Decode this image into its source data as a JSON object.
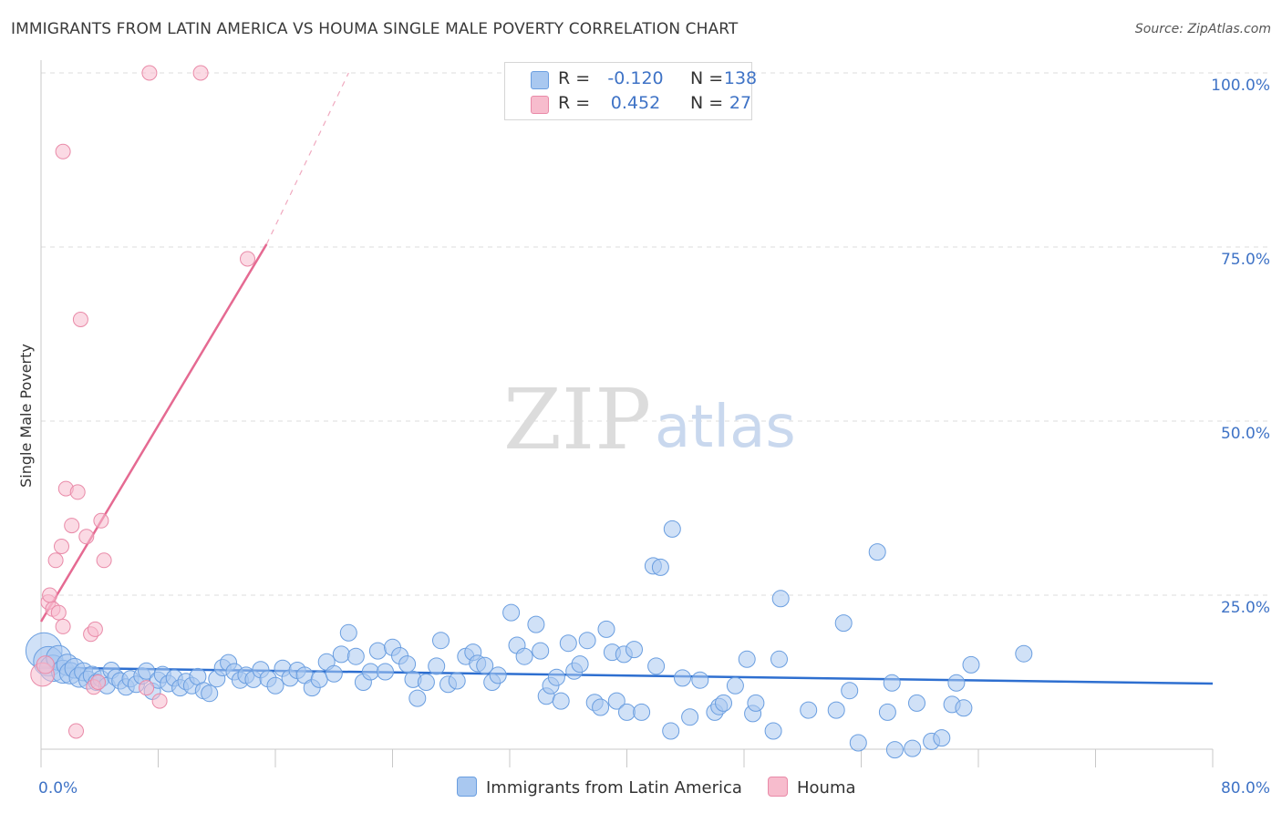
{
  "title": "IMMIGRANTS FROM LATIN AMERICA VS HOUMA SINGLE MALE POVERTY CORRELATION CHART",
  "source": "Source: ZipAtlas.com",
  "watermark": {
    "zip": "ZIP",
    "atlas": "atlas"
  },
  "colors": {
    "blue_fill": "#a9c8f0",
    "blue_stroke": "#6a9ee0",
    "blue_line": "#2e6fd0",
    "pink_fill": "#f7bccd",
    "pink_stroke": "#e98aa8",
    "pink_line": "#e56a92",
    "tick_text": "#3f73c6",
    "grid": "#dddddd"
  },
  "legend": {
    "rows": [
      {
        "series": "Immigrants from Latin America",
        "r_label": "R =",
        "r_value": "-0.120",
        "n_label": "N =",
        "n_value": "138"
      },
      {
        "series": "Houma",
        "r_label": "R =",
        "r_value": "0.452",
        "n_label": "N =",
        "n_value": "27"
      }
    ]
  },
  "chart_data": {
    "type": "scatter",
    "title": "IMMIGRANTS FROM LATIN AMERICA VS HOUMA SINGLE MALE POVERTY CORRELATION CHART",
    "xlabel": "",
    "ylabel": "Single Male Poverty",
    "xlim": [
      0,
      80
    ],
    "ylim": [
      0,
      105
    ],
    "x_tick_labels": [
      {
        "value": 0,
        "label": "0.0%"
      },
      {
        "value": 80,
        "label": "80.0%"
      }
    ],
    "y_tick_labels": [
      {
        "value": 25,
        "label": "25.0%"
      },
      {
        "value": 50,
        "label": "50.0%"
      },
      {
        "value": 75,
        "label": "75.0%"
      },
      {
        "value": 100,
        "label": "100.0%"
      }
    ],
    "grid": true,
    "series": [
      {
        "name": "Immigrants from Latin America",
        "color": "#a9c8f0",
        "trendline": {
          "x": [
            0,
            80
          ],
          "y": [
            14.6,
            12.3
          ],
          "style": "solid"
        },
        "points": [
          {
            "x": 0.2,
            "y": 17.0,
            "s": 2.2
          },
          {
            "x": 0.5,
            "y": 15.5,
            "s": 1.8
          },
          {
            "x": 0.8,
            "y": 14.5,
            "s": 1.6
          },
          {
            "x": 1.2,
            "y": 16.0,
            "s": 1.5
          },
          {
            "x": 1.5,
            "y": 14.0,
            "s": 1.4
          },
          {
            "x": 1.8,
            "y": 15.0,
            "s": 1.3
          },
          {
            "x": 2.0,
            "y": 13.8,
            "s": 1.3
          },
          {
            "x": 2.3,
            "y": 14.5,
            "s": 1.2
          },
          {
            "x": 2.6,
            "y": 13.2,
            "s": 1.2
          },
          {
            "x": 2.9,
            "y": 14.0,
            "s": 1.1
          },
          {
            "x": 3.2,
            "y": 12.8,
            "s": 1.1
          },
          {
            "x": 3.5,
            "y": 13.5,
            "s": 1.1
          },
          {
            "x": 3.8,
            "y": 12.5,
            "s": 1.0
          },
          {
            "x": 4.1,
            "y": 13.0,
            "s": 1.0
          },
          {
            "x": 4.5,
            "y": 12.0,
            "s": 1.0
          },
          {
            "x": 4.8,
            "y": 14.2,
            "s": 1.0
          },
          {
            "x": 5.1,
            "y": 13.2,
            "s": 1.0
          },
          {
            "x": 5.4,
            "y": 12.7,
            "s": 1.0
          },
          {
            "x": 5.8,
            "y": 11.8,
            "s": 1.0
          },
          {
            "x": 6.1,
            "y": 13.0,
            "s": 1.0
          },
          {
            "x": 6.5,
            "y": 12.2,
            "s": 1.0
          },
          {
            "x": 6.9,
            "y": 13.4,
            "s": 1.0
          },
          {
            "x": 7.2,
            "y": 14.1,
            "s": 1.0
          },
          {
            "x": 7.6,
            "y": 11.2,
            "s": 1.0
          },
          {
            "x": 8.0,
            "y": 12.8,
            "s": 1.0
          },
          {
            "x": 8.3,
            "y": 13.6,
            "s": 1.0
          },
          {
            "x": 8.7,
            "y": 12.3,
            "s": 1.0
          },
          {
            "x": 9.1,
            "y": 13.1,
            "s": 1.0
          },
          {
            "x": 9.5,
            "y": 11.7,
            "s": 1.0
          },
          {
            "x": 9.9,
            "y": 12.6,
            "s": 1.0
          },
          {
            "x": 10.3,
            "y": 12.0,
            "s": 1.0
          },
          {
            "x": 10.7,
            "y": 13.3,
            "s": 1.0
          },
          {
            "x": 11.1,
            "y": 11.3,
            "s": 1.0
          },
          {
            "x": 11.5,
            "y": 10.9,
            "s": 1.0
          },
          {
            "x": 12.0,
            "y": 13.0,
            "s": 1.0
          },
          {
            "x": 12.4,
            "y": 14.6,
            "s": 1.0
          },
          {
            "x": 12.8,
            "y": 15.3,
            "s": 1.0
          },
          {
            "x": 13.2,
            "y": 14.0,
            "s": 1.0
          },
          {
            "x": 13.6,
            "y": 12.8,
            "s": 1.0
          },
          {
            "x": 14.0,
            "y": 13.5,
            "s": 1.0
          },
          {
            "x": 14.5,
            "y": 12.9,
            "s": 1.0
          },
          {
            "x": 15.0,
            "y": 14.3,
            "s": 1.0
          },
          {
            "x": 15.5,
            "y": 13.0,
            "s": 1.0
          },
          {
            "x": 16.0,
            "y": 12.0,
            "s": 1.0
          },
          {
            "x": 16.5,
            "y": 14.5,
            "s": 1.0
          },
          {
            "x": 17.0,
            "y": 13.1,
            "s": 1.0
          },
          {
            "x": 17.5,
            "y": 14.2,
            "s": 1.0
          },
          {
            "x": 18.0,
            "y": 13.5,
            "s": 1.0
          },
          {
            "x": 18.5,
            "y": 11.7,
            "s": 1.0
          },
          {
            "x": 19.0,
            "y": 12.9,
            "s": 1.0
          },
          {
            "x": 19.5,
            "y": 15.4,
            "s": 1.0
          },
          {
            "x": 20.0,
            "y": 13.7,
            "s": 1.0
          },
          {
            "x": 20.5,
            "y": 16.5,
            "s": 1.0
          },
          {
            "x": 21.0,
            "y": 19.6,
            "s": 1.0
          },
          {
            "x": 21.5,
            "y": 16.2,
            "s": 1.0
          },
          {
            "x": 22.0,
            "y": 12.5,
            "s": 1.0
          },
          {
            "x": 22.5,
            "y": 14.0,
            "s": 1.0
          },
          {
            "x": 23.0,
            "y": 17.0,
            "s": 1.0
          },
          {
            "x": 23.5,
            "y": 14.0,
            "s": 1.0
          },
          {
            "x": 24.0,
            "y": 17.5,
            "s": 1.0
          },
          {
            "x": 24.5,
            "y": 16.3,
            "s": 1.0
          },
          {
            "x": 25.0,
            "y": 15.1,
            "s": 1.0
          },
          {
            "x": 25.4,
            "y": 12.9,
            "s": 1.0
          },
          {
            "x": 25.7,
            "y": 10.2,
            "s": 1.0
          },
          {
            "x": 26.3,
            "y": 12.5,
            "s": 1.0
          },
          {
            "x": 27.0,
            "y": 14.8,
            "s": 1.0
          },
          {
            "x": 27.3,
            "y": 18.5,
            "s": 1.0
          },
          {
            "x": 27.8,
            "y": 12.2,
            "s": 1.0
          },
          {
            "x": 28.4,
            "y": 12.7,
            "s": 1.0
          },
          {
            "x": 29.0,
            "y": 16.2,
            "s": 1.0
          },
          {
            "x": 29.5,
            "y": 16.8,
            "s": 1.0
          },
          {
            "x": 29.8,
            "y": 15.2,
            "s": 1.0
          },
          {
            "x": 30.3,
            "y": 14.9,
            "s": 1.0
          },
          {
            "x": 30.8,
            "y": 12.5,
            "s": 1.0
          },
          {
            "x": 31.2,
            "y": 13.5,
            "s": 1.0
          },
          {
            "x": 32.1,
            "y": 22.5,
            "s": 1.0
          },
          {
            "x": 32.5,
            "y": 17.8,
            "s": 1.0
          },
          {
            "x": 33.0,
            "y": 16.2,
            "s": 1.0
          },
          {
            "x": 33.8,
            "y": 20.8,
            "s": 1.0
          },
          {
            "x": 34.1,
            "y": 17.0,
            "s": 1.0
          },
          {
            "x": 34.5,
            "y": 10.5,
            "s": 1.0
          },
          {
            "x": 34.8,
            "y": 12.0,
            "s": 1.0
          },
          {
            "x": 35.2,
            "y": 13.2,
            "s": 1.0
          },
          {
            "x": 35.5,
            "y": 9.8,
            "s": 1.0
          },
          {
            "x": 36.0,
            "y": 18.1,
            "s": 1.0
          },
          {
            "x": 36.4,
            "y": 14.1,
            "s": 1.0
          },
          {
            "x": 36.8,
            "y": 15.1,
            "s": 1.0
          },
          {
            "x": 37.3,
            "y": 18.5,
            "s": 1.0
          },
          {
            "x": 37.8,
            "y": 9.6,
            "s": 1.0
          },
          {
            "x": 38.2,
            "y": 8.9,
            "s": 1.0
          },
          {
            "x": 38.6,
            "y": 20.1,
            "s": 1.0
          },
          {
            "x": 39.0,
            "y": 16.8,
            "s": 1.0
          },
          {
            "x": 39.3,
            "y": 9.8,
            "s": 1.0
          },
          {
            "x": 39.8,
            "y": 16.5,
            "s": 1.0
          },
          {
            "x": 40.5,
            "y": 17.2,
            "s": 1.0
          },
          {
            "x": 40.0,
            "y": 8.2,
            "s": 1.0
          },
          {
            "x": 41.0,
            "y": 8.2,
            "s": 1.0
          },
          {
            "x": 41.8,
            "y": 29.2,
            "s": 1.0
          },
          {
            "x": 42.0,
            "y": 14.8,
            "s": 1.0
          },
          {
            "x": 42.3,
            "y": 29.0,
            "s": 1.0
          },
          {
            "x": 43.1,
            "y": 34.5,
            "s": 1.0
          },
          {
            "x": 43.0,
            "y": 5.5,
            "s": 1.0
          },
          {
            "x": 43.8,
            "y": 13.1,
            "s": 1.0
          },
          {
            "x": 44.3,
            "y": 7.5,
            "s": 1.0
          },
          {
            "x": 45.0,
            "y": 12.8,
            "s": 1.0
          },
          {
            "x": 46.0,
            "y": 8.2,
            "s": 1.0
          },
          {
            "x": 46.3,
            "y": 9.0,
            "s": 1.0
          },
          {
            "x": 46.6,
            "y": 9.5,
            "s": 1.0
          },
          {
            "x": 47.4,
            "y": 12.0,
            "s": 1.0
          },
          {
            "x": 48.2,
            "y": 15.8,
            "s": 1.0
          },
          {
            "x": 48.6,
            "y": 8.0,
            "s": 1.0
          },
          {
            "x": 48.8,
            "y": 9.5,
            "s": 1.0
          },
          {
            "x": 50.0,
            "y": 5.5,
            "s": 1.0
          },
          {
            "x": 50.5,
            "y": 24.5,
            "s": 1.0
          },
          {
            "x": 50.4,
            "y": 15.8,
            "s": 1.0
          },
          {
            "x": 52.4,
            "y": 8.5,
            "s": 1.0
          },
          {
            "x": 54.3,
            "y": 8.5,
            "s": 1.0
          },
          {
            "x": 54.8,
            "y": 21.0,
            "s": 1.0
          },
          {
            "x": 55.2,
            "y": 11.3,
            "s": 1.0
          },
          {
            "x": 55.8,
            "y": 3.8,
            "s": 1.0
          },
          {
            "x": 57.1,
            "y": 31.2,
            "s": 1.0
          },
          {
            "x": 57.8,
            "y": 8.2,
            "s": 1.0
          },
          {
            "x": 58.1,
            "y": 12.4,
            "s": 1.0
          },
          {
            "x": 58.3,
            "y": 2.8,
            "s": 1.0
          },
          {
            "x": 59.5,
            "y": 3.0,
            "s": 1.0
          },
          {
            "x": 59.8,
            "y": 9.5,
            "s": 1.0
          },
          {
            "x": 60.8,
            "y": 4.0,
            "s": 1.0
          },
          {
            "x": 62.2,
            "y": 9.3,
            "s": 1.0
          },
          {
            "x": 62.5,
            "y": 12.4,
            "s": 1.0
          },
          {
            "x": 63.0,
            "y": 8.8,
            "s": 1.0
          },
          {
            "x": 63.5,
            "y": 15.0,
            "s": 1.0
          },
          {
            "x": 61.5,
            "y": 4.5,
            "s": 1.0
          },
          {
            "x": 67.1,
            "y": 16.6,
            "s": 1.0
          }
        ]
      },
      {
        "name": "Houma",
        "color": "#f7bccd",
        "trendline": {
          "x": [
            0,
            15.4
          ],
          "y": [
            21.2,
            75.4
          ],
          "style": "solid",
          "extension": {
            "x": [
              15.4,
              21.0
            ],
            "y": [
              75.4,
              100.0
            ],
            "style": "dashed"
          }
        },
        "points": [
          {
            "x": 0.1,
            "y": 13.6,
            "s": 1.6
          },
          {
            "x": 0.3,
            "y": 15.0,
            "s": 1.2
          },
          {
            "x": 0.5,
            "y": 24.0,
            "s": 1.0
          },
          {
            "x": 0.6,
            "y": 25.0,
            "s": 1.0
          },
          {
            "x": 0.8,
            "y": 23.0,
            "s": 1.0
          },
          {
            "x": 1.0,
            "y": 30.0,
            "s": 1.0
          },
          {
            "x": 1.2,
            "y": 22.5,
            "s": 1.0
          },
          {
            "x": 1.4,
            "y": 32.0,
            "s": 1.0
          },
          {
            "x": 1.5,
            "y": 20.5,
            "s": 1.0
          },
          {
            "x": 1.7,
            "y": 40.3,
            "s": 1.0
          },
          {
            "x": 2.1,
            "y": 35.0,
            "s": 1.0
          },
          {
            "x": 2.5,
            "y": 39.8,
            "s": 1.0
          },
          {
            "x": 2.7,
            "y": 64.6,
            "s": 1.0
          },
          {
            "x": 3.1,
            "y": 33.4,
            "s": 1.0
          },
          {
            "x": 3.4,
            "y": 19.4,
            "s": 1.0
          },
          {
            "x": 3.7,
            "y": 20.1,
            "s": 1.0
          },
          {
            "x": 3.6,
            "y": 11.8,
            "s": 1.0
          },
          {
            "x": 3.9,
            "y": 12.5,
            "s": 1.0
          },
          {
            "x": 4.1,
            "y": 35.7,
            "s": 1.0
          },
          {
            "x": 4.3,
            "y": 30.0,
            "s": 1.0
          },
          {
            "x": 1.5,
            "y": 88.7,
            "s": 1.0
          },
          {
            "x": 7.4,
            "y": 100.0,
            "s": 1.0
          },
          {
            "x": 10.9,
            "y": 100.0,
            "s": 1.0
          },
          {
            "x": 14.1,
            "y": 73.3,
            "s": 1.0
          },
          {
            "x": 2.4,
            "y": 5.5,
            "s": 1.0
          },
          {
            "x": 8.1,
            "y": 9.8,
            "s": 1.0
          },
          {
            "x": 7.2,
            "y": 11.7,
            "s": 1.0
          }
        ]
      }
    ]
  }
}
